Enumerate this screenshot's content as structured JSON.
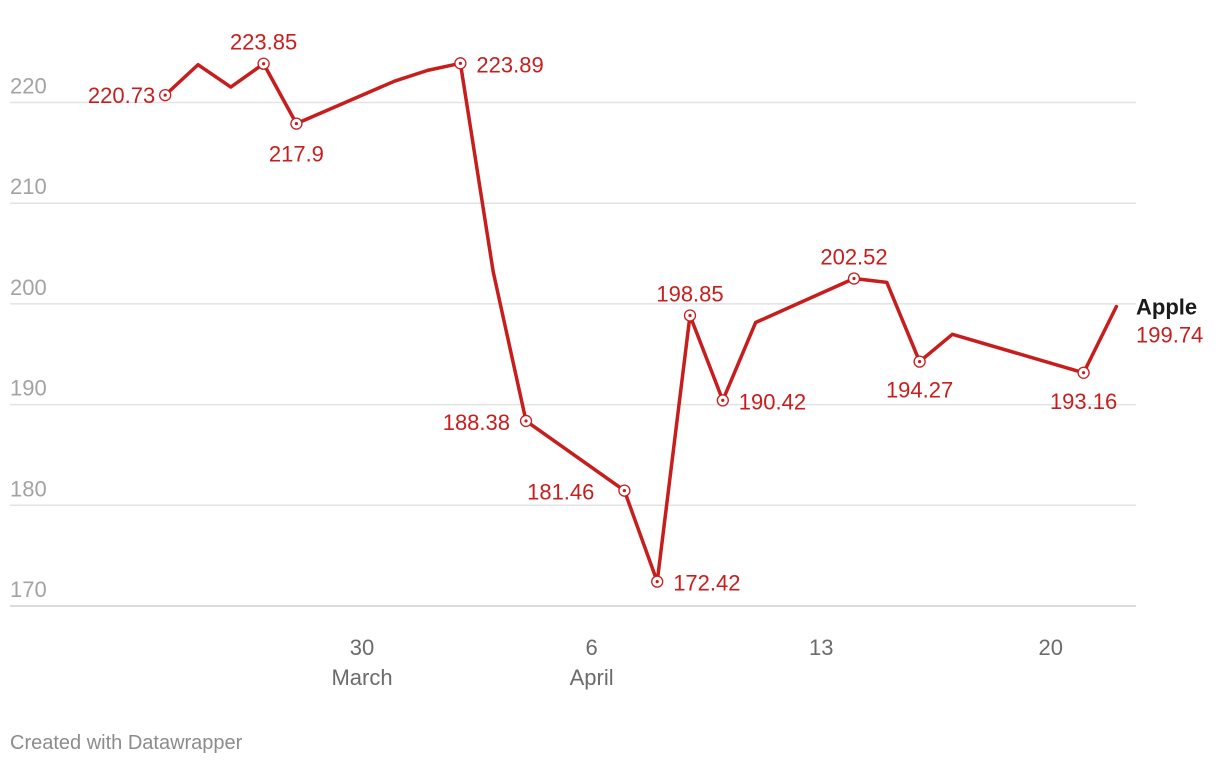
{
  "chart_data": {
    "type": "line",
    "title": "",
    "xlabel": "",
    "ylabel": "",
    "ylim": [
      168,
      225
    ],
    "y_ticks": [
      170,
      180,
      190,
      200,
      210,
      220
    ],
    "grid": true,
    "x_ticks": [
      {
        "date": "2025-03-30",
        "label": "30",
        "sublabel": "March"
      },
      {
        "date": "2025-04-06",
        "label": "6",
        "sublabel": "April"
      },
      {
        "date": "2025-04-13",
        "label": "13",
        "sublabel": ""
      },
      {
        "date": "2025-04-20",
        "label": "20",
        "sublabel": ""
      }
    ],
    "series": [
      {
        "name": "Apple",
        "color": "#c71e1d",
        "points": [
          {
            "x": "2025-03-24",
            "y": 220.73,
            "label": "220.73"
          },
          {
            "x": "2025-03-25",
            "y": 223.75
          },
          {
            "x": "2025-03-26",
            "y": 221.53
          },
          {
            "x": "2025-03-27",
            "y": 223.85,
            "label": "223.85"
          },
          {
            "x": "2025-03-28",
            "y": 217.9,
            "label": "217.9"
          },
          {
            "x": "2025-03-31",
            "y": 222.13
          },
          {
            "x": "2025-04-01",
            "y": 223.19
          },
          {
            "x": "2025-04-02",
            "y": 223.89,
            "label": "223.89"
          },
          {
            "x": "2025-04-03",
            "y": 203.19
          },
          {
            "x": "2025-04-04",
            "y": 188.38,
            "label": "188.38"
          },
          {
            "x": "2025-04-07",
            "y": 181.46,
            "label": "181.46"
          },
          {
            "x": "2025-04-08",
            "y": 172.42,
            "label": "172.42"
          },
          {
            "x": "2025-04-09",
            "y": 198.85,
            "label": "198.85"
          },
          {
            "x": "2025-04-10",
            "y": 190.42,
            "label": "190.42"
          },
          {
            "x": "2025-04-11",
            "y": 198.15
          },
          {
            "x": "2025-04-14",
            "y": 202.52,
            "label": "202.52"
          },
          {
            "x": "2025-04-15",
            "y": 202.14
          },
          {
            "x": "2025-04-16",
            "y": 194.27,
            "label": "194.27"
          },
          {
            "x": "2025-04-17",
            "y": 196.98
          },
          {
            "x": "2025-04-21",
            "y": 193.16,
            "label": "193.16"
          },
          {
            "x": "2025-04-22",
            "y": 199.74,
            "end": true
          }
        ],
        "end_value_label": "199.74"
      }
    ]
  },
  "footer": {
    "credit": "Created with Datawrapper"
  }
}
